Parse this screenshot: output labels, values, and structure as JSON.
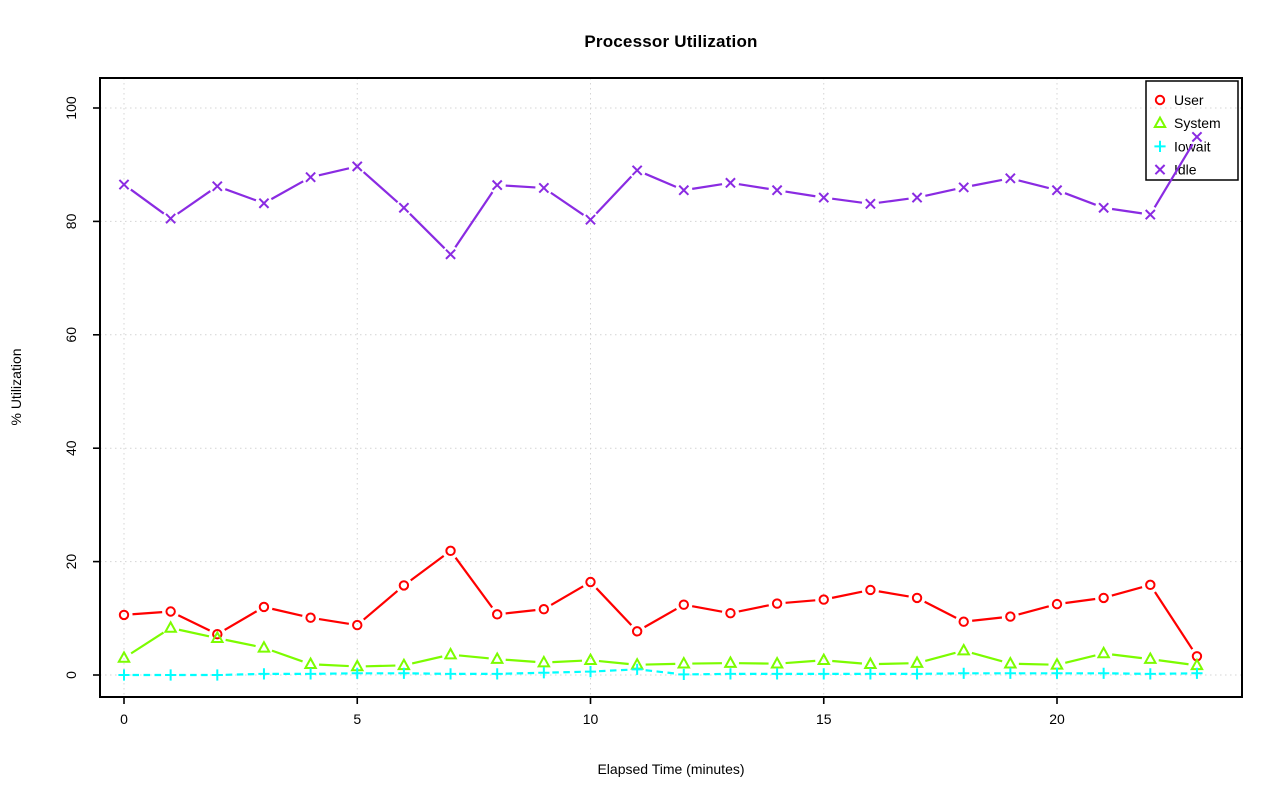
{
  "page": {
    "background": "#ffffff"
  },
  "chart_data": {
    "type": "line",
    "title": "Processor Utilization",
    "xlabel": "Elapsed Time (minutes)",
    "ylabel": "% Utilization",
    "x": [
      0,
      1,
      2,
      3,
      4,
      5,
      6,
      7,
      8,
      9,
      10,
      11,
      12,
      13,
      14,
      15,
      16,
      17,
      18,
      19,
      20,
      21,
      22,
      23
    ],
    "xticks": [
      0,
      5,
      10,
      15,
      20
    ],
    "yticks": [
      0,
      20,
      40,
      60,
      80,
      100
    ],
    "xlim": [
      0,
      23
    ],
    "ylim": [
      0,
      100
    ],
    "grid": true,
    "grid_color": "#d4d4d4",
    "axis_color": "#000000",
    "legend_position": "top-right",
    "series": [
      {
        "name": "User",
        "color": "#ff0000",
        "marker": "circle",
        "line_style": "solid",
        "values": [
          10.6,
          11.2,
          7.2,
          12.0,
          10.1,
          8.8,
          15.8,
          21.9,
          10.7,
          11.6,
          16.4,
          7.7,
          12.4,
          10.9,
          12.6,
          13.3,
          15.0,
          13.6,
          9.4,
          10.3,
          12.5,
          13.6,
          15.9,
          3.3
        ]
      },
      {
        "name": "System",
        "color": "#7cfc00",
        "marker": "triangle",
        "line_style": "solid",
        "values": [
          3.0,
          8.3,
          6.5,
          4.8,
          1.9,
          1.5,
          1.7,
          3.6,
          2.8,
          2.2,
          2.6,
          1.8,
          2.0,
          2.1,
          2.0,
          2.6,
          1.9,
          2.1,
          4.3,
          2.0,
          1.8,
          3.8,
          2.8,
          1.7
        ]
      },
      {
        "name": "Iowait",
        "color": "#00ffff",
        "marker": "plus",
        "line_style": "dashed",
        "values": [
          0.0,
          0.0,
          0.0,
          0.2,
          0.2,
          0.3,
          0.3,
          0.2,
          0.2,
          0.4,
          0.6,
          1.0,
          0.1,
          0.2,
          0.2,
          0.2,
          0.2,
          0.2,
          0.3,
          0.3,
          0.3,
          0.3,
          0.2,
          0.3
        ]
      },
      {
        "name": "Idle",
        "color": "#8a2be2",
        "marker": "x",
        "line_style": "solid",
        "values": [
          86.5,
          80.5,
          86.2,
          83.2,
          87.8,
          89.7,
          82.4,
          74.2,
          86.4,
          85.9,
          80.3,
          89.0,
          85.5,
          86.8,
          85.5,
          84.2,
          83.1,
          84.2,
          86.0,
          87.6,
          85.5,
          82.4,
          81.2,
          94.9
        ]
      }
    ]
  }
}
